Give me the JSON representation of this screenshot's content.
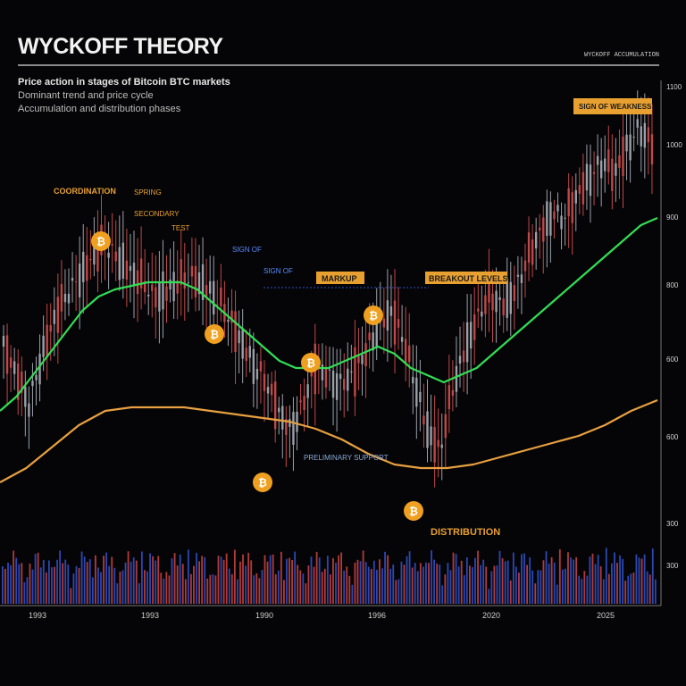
{
  "header": {
    "title": "WYCKOFF THEORY",
    "corner_note": "WYCKOFF ACCUMULATION",
    "subtitle_lines": [
      "Price action in stages of Bitcoin BTC markets",
      "Dominant trend and price cycle",
      "Accumulation and distribution phases"
    ]
  },
  "colors": {
    "background": "#050507",
    "ma_fast": "#33dd55",
    "ma_slow": "#e8a040",
    "candle_up": "#9aa0a8",
    "candle_down": "#c04848",
    "volume_blue": "#3050c8",
    "volume_red": "#c84040",
    "marker": "#f0a020",
    "annotation_blue": "#5a8cff",
    "annotation_orange": "#e8a030"
  },
  "chart_data": {
    "type": "line",
    "title": "WYCKOFF THEORY",
    "x_ticks": [
      "1993",
      "1993",
      "1990",
      "1996",
      "2020",
      "2025"
    ],
    "y_ticks": [
      "1100",
      "1000",
      "900",
      "800",
      "600",
      "600",
      "300",
      "300"
    ],
    "series": [
      {
        "kind": "price",
        "values": [
          48,
          40,
          32,
          45,
          55,
          62,
          68,
          72,
          76,
          74,
          70,
          66,
          62,
          64,
          66,
          67,
          66,
          62,
          56,
          50,
          44,
          38,
          30,
          25,
          32,
          42,
          40,
          38,
          40,
          46,
          54,
          58,
          50,
          38,
          25,
          18,
          36,
          48,
          56,
          62,
          60,
          64,
          72,
          80,
          86,
          84,
          90,
          96,
          100,
          96,
          104,
          110,
          104
        ]
      },
      {
        "kind": "ma_fast",
        "values": [
          30,
          34,
          40,
          46,
          52,
          58,
          62,
          64,
          65,
          66,
          66,
          66,
          64,
          60,
          56,
          52,
          48,
          44,
          42,
          42,
          42,
          44,
          46,
          48,
          46,
          42,
          40,
          38,
          40,
          42,
          46,
          50,
          54,
          58,
          62,
          66,
          70,
          74,
          78,
          82,
          84
        ]
      },
      {
        "kind": "ma_slow",
        "values": [
          10,
          14,
          20,
          26,
          30,
          31,
          31,
          31,
          30,
          29,
          28,
          27,
          25,
          22,
          18,
          15,
          14,
          14,
          15,
          17,
          19,
          21,
          23,
          26,
          30,
          33
        ]
      }
    ],
    "annotations": [
      "COORDINATION",
      "SPRING",
      "SECONDARY",
      "TEST",
      "SIGN OF",
      "MARKUP",
      "BREAKOUT LEVELS",
      "PRELIMINARY SUPPORT",
      "DISTRIBUTION",
      "SIGN OF WEAKNESS"
    ],
    "grid": false,
    "legend": "none"
  }
}
